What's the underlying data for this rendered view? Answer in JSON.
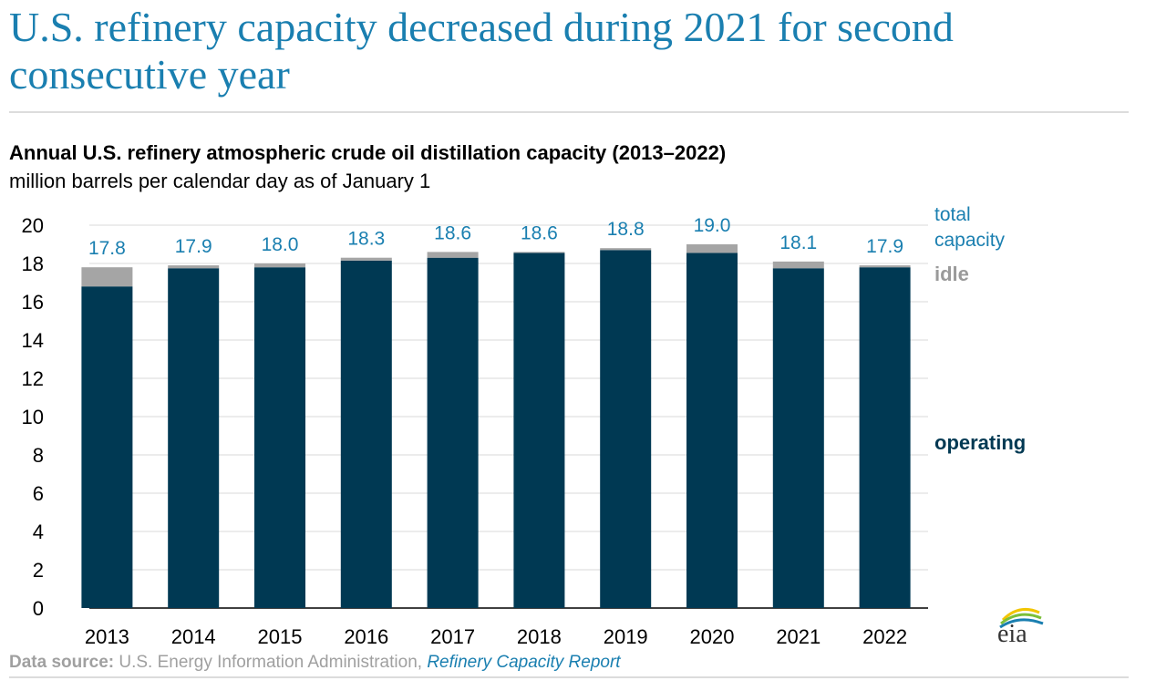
{
  "headline": "U.S. refinery capacity decreased during 2021 for second consecutive year",
  "source": {
    "label": "Data source:",
    "text": " U.S. Energy Information Administration, ",
    "link": "Refinery Capacity Report"
  },
  "logo_text": "eia",
  "colors": {
    "operating": "#003953",
    "idle": "#a5a5a5",
    "accent": "#1a7fb0",
    "grid": "#d9d9d9"
  },
  "chart_data": {
    "type": "bar",
    "stacked": true,
    "title": "Annual U.S. refinery atmospheric crude oil distillation capacity (2013–2022)",
    "subtitle": "million barrels per calendar day as of January 1",
    "categories": [
      "2013",
      "2014",
      "2015",
      "2016",
      "2017",
      "2018",
      "2019",
      "2020",
      "2021",
      "2022"
    ],
    "series": [
      {
        "name": "operating",
        "values": [
          16.8,
          17.75,
          17.8,
          18.15,
          18.3,
          18.55,
          18.7,
          18.55,
          17.75,
          17.8
        ]
      },
      {
        "name": "idle",
        "values": [
          1.0,
          0.15,
          0.2,
          0.15,
          0.3,
          0.05,
          0.1,
          0.45,
          0.35,
          0.1
        ]
      }
    ],
    "totals": [
      17.8,
      17.9,
      18.0,
      18.3,
      18.6,
      18.6,
      18.8,
      19.0,
      18.1,
      17.9
    ],
    "total_labels": [
      "17.8",
      "17.9",
      "18.0",
      "18.3",
      "18.6",
      "18.6",
      "18.8",
      "19.0",
      "18.1",
      "17.9"
    ],
    "total_label_lines": [
      "total",
      "capacity"
    ],
    "ylim": [
      0,
      20
    ],
    "yticks": [
      0,
      2,
      4,
      6,
      8,
      10,
      12,
      14,
      16,
      18,
      20
    ],
    "grid": true,
    "legend": "right, direct labels"
  }
}
